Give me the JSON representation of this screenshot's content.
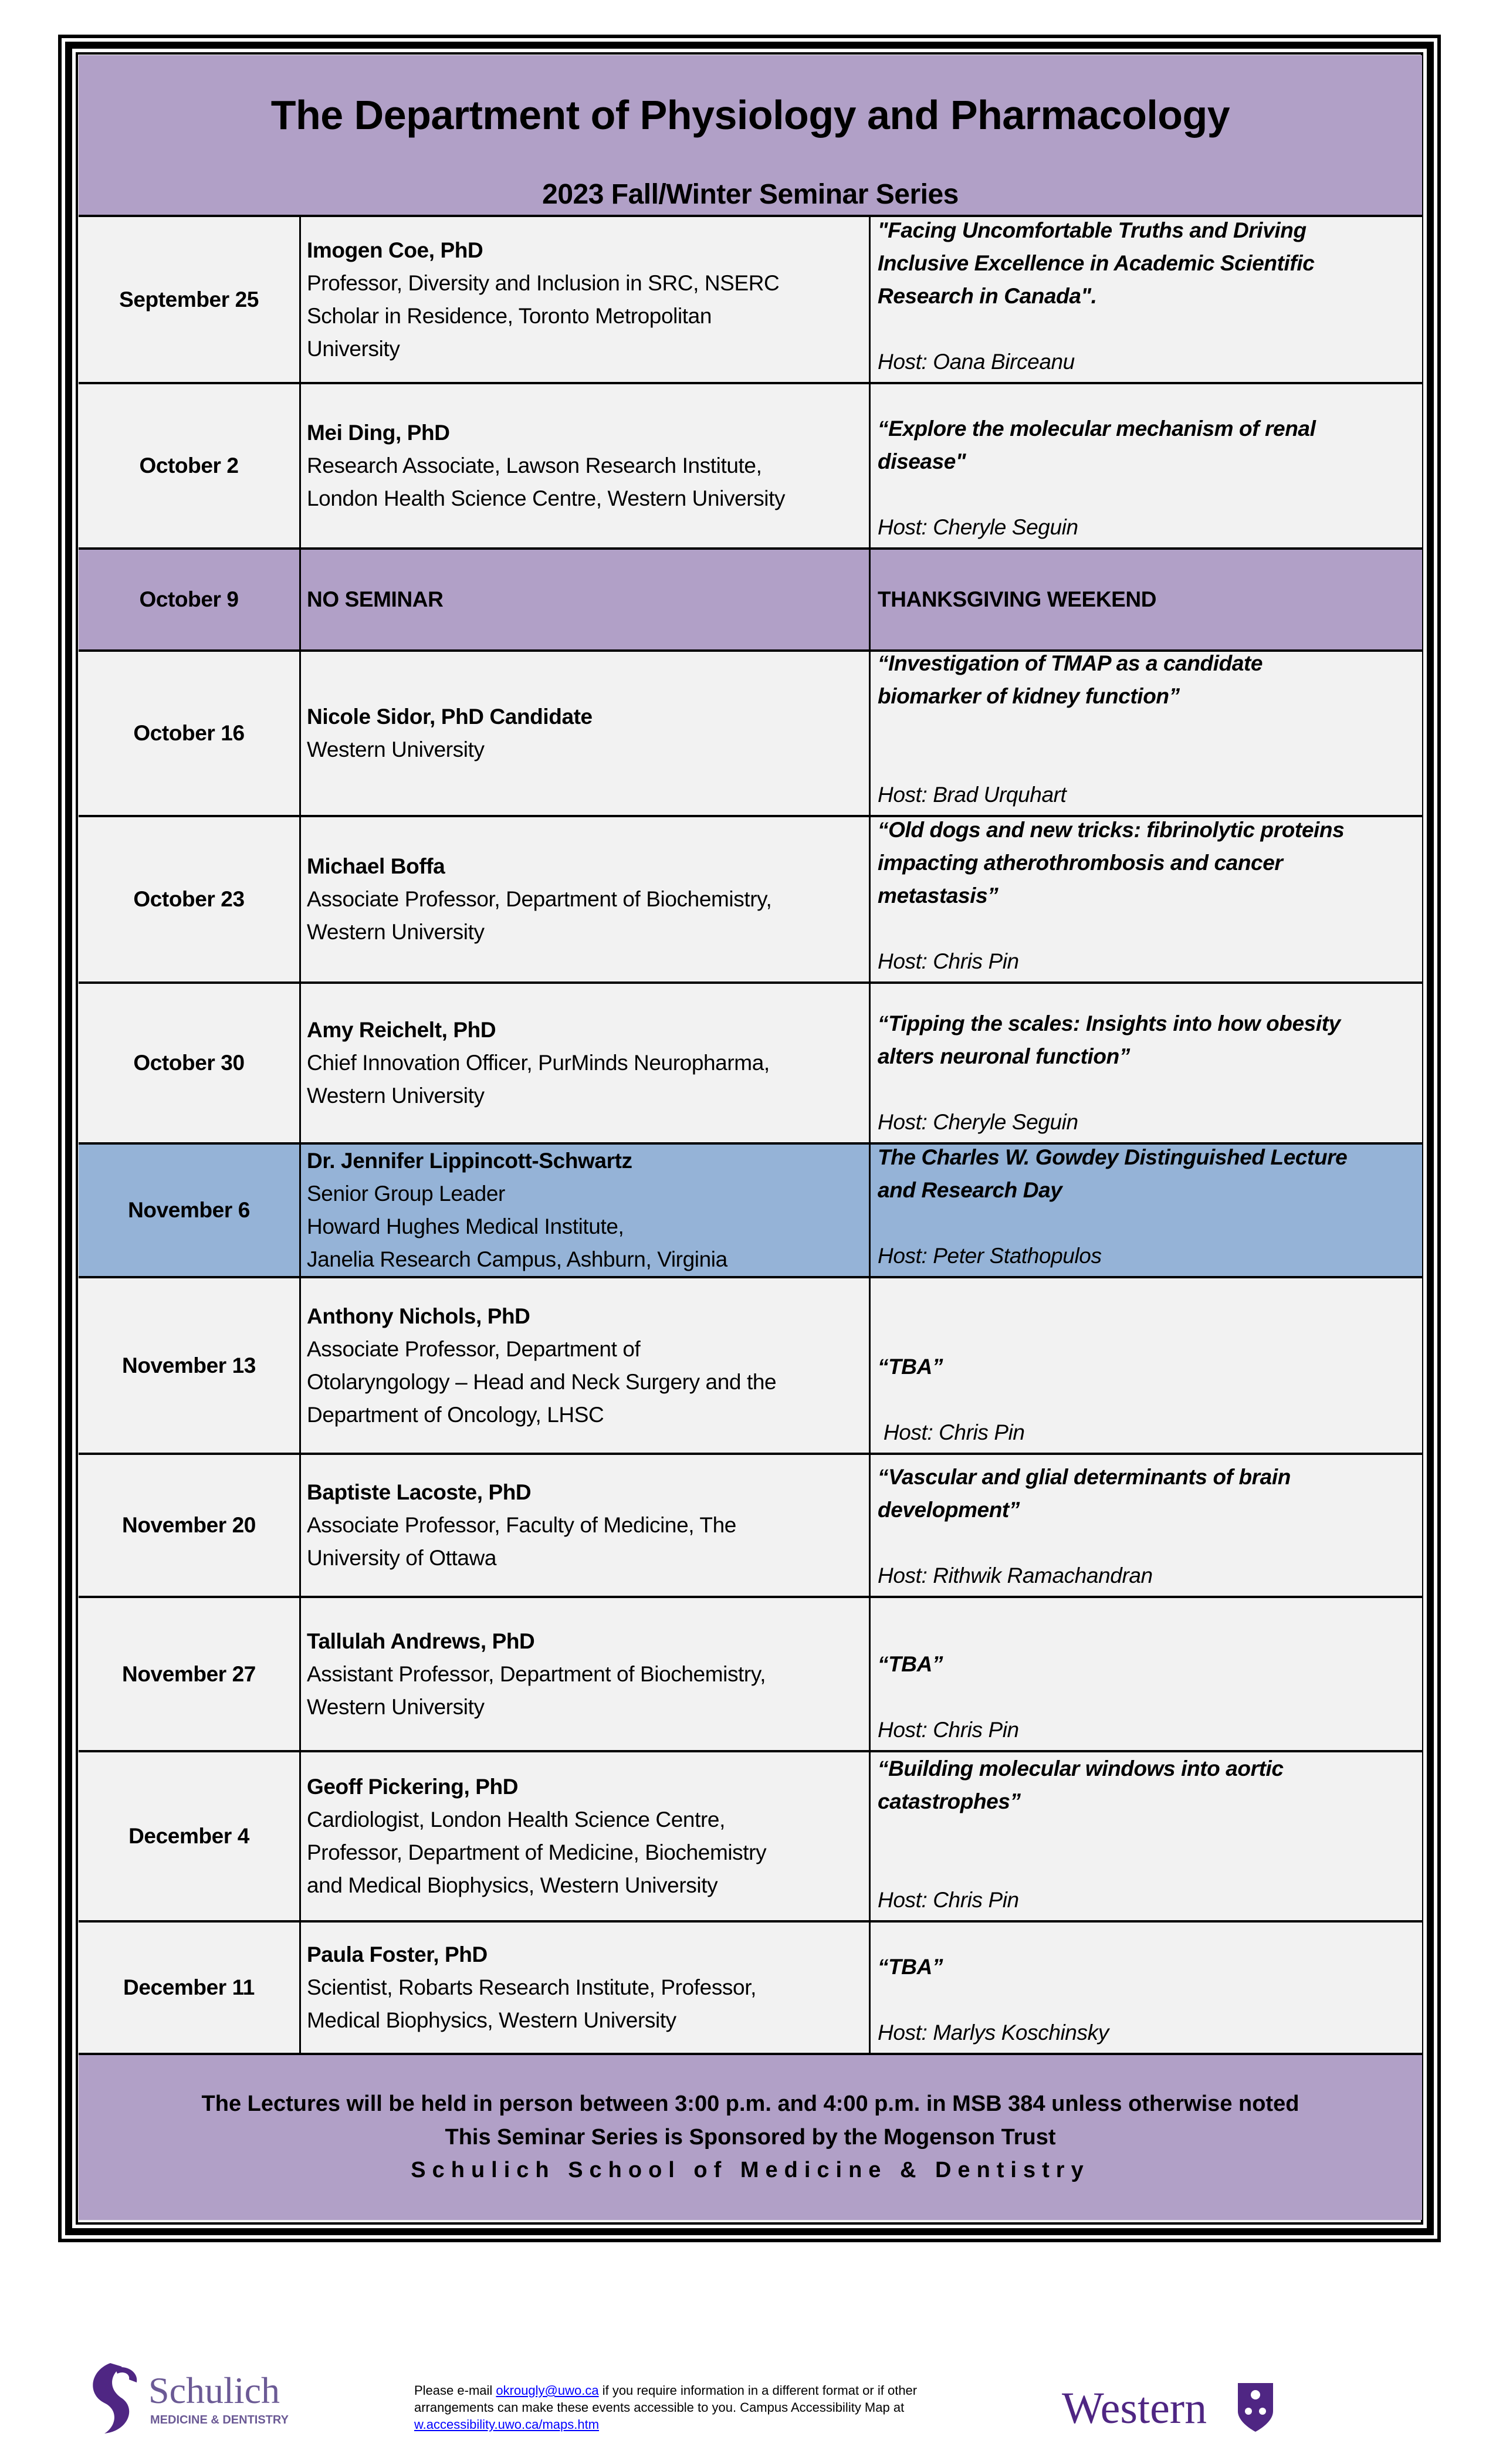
{
  "header": {
    "title": "The Department of Physiology and Pharmacology",
    "subtitle": "2023 Fall/Winter Seminar Series"
  },
  "colors": {
    "header_purple": "#b1a0c7",
    "row_gray": "#f2f2f2",
    "highlight_blue": "#95b3d7",
    "logo_purple": "#4f2683"
  },
  "rows": [
    {
      "date": "September 25",
      "style": "normal",
      "speaker": [
        "Imogen Coe, PhD",
        "Professor, Diversity and Inclusion in SRC, NSERC",
        "Scholar in Residence, Toronto Metropolitan",
        "University"
      ],
      "topic": [
        "\"Facing Uncomfortable Truths and Driving",
        "Inclusive Excellence in Academic Scientific",
        "Research in Canada\"."
      ],
      "host": "Host: Oana Birceanu",
      "gap": 1
    },
    {
      "date": "October 2",
      "style": "normal",
      "speaker": [
        "Mei Ding, PhD",
        "Research Associate, Lawson Research Institute,",
        "London Health Science Centre, Western University"
      ],
      "topic": [
        "“Explore the molecular mechanism of renal",
        "disease\""
      ],
      "host": "Host: Cheryle Seguin",
      "gap": 1
    },
    {
      "date": "October 9",
      "style": "plain",
      "speaker": [
        "NO SEMINAR"
      ],
      "topic": [
        "THANKSGIVING WEEKEND"
      ],
      "host": "",
      "gap": 0
    },
    {
      "date": "October 16",
      "style": "normal",
      "speaker": [
        "Nicole Sidor, PhD Candidate",
        "Western University"
      ],
      "topic": [
        "“Investigation of TMAP as a candidate",
        "biomarker of kidney function”"
      ],
      "host": "Host: Brad Urquhart",
      "gap": 2
    },
    {
      "date": "October 23",
      "style": "normal",
      "speaker": [
        "Michael Boffa",
        "Associate Professor, Department of Biochemistry,",
        "Western University"
      ],
      "topic": [
        "“Old dogs and new tricks: fibrinolytic proteins",
        "impacting atherothrombosis and cancer",
        "metastasis”"
      ],
      "host": "Host: Chris Pin",
      "gap": 1
    },
    {
      "date": "October 30",
      "style": "normal",
      "speaker": [
        "Amy Reichelt, PhD",
        "Chief Innovation Officer, PurMinds Neuropharma,",
        "Western University"
      ],
      "topic": [
        "“Tipping the scales: Insights into how obesity",
        "alters neuronal function”"
      ],
      "host": "Host: Cheryle Seguin",
      "gap": 1
    },
    {
      "date": "November 6",
      "style": "blue",
      "speaker": [
        "Dr. Jennifer Lippincott-Schwartz",
        "Senior Group Leader",
        "Howard Hughes Medical Institute,",
        "Janelia Research Campus, Ashburn, Virginia"
      ],
      "topic": [
        "The Charles W. Gowdey Distinguished Lecture",
        "and Research Day"
      ],
      "host": "Host: Peter Stathopulos",
      "gap": 1
    },
    {
      "date": "November 13",
      "style": "normal",
      "speaker": [
        "Anthony Nichols, PhD",
        "Associate Professor, Department of",
        "Otolaryngology – Head and Neck Surgery and the",
        "Department of Oncology, LHSC"
      ],
      "topic": [
        "“TBA”"
      ],
      "host": " Host: Chris Pin",
      "gap": 1
    },
    {
      "date": "November 20",
      "style": "normal",
      "speaker": [
        "Baptiste Lacoste, PhD",
        "Associate Professor, Faculty of Medicine, The",
        "University of Ottawa"
      ],
      "topic": [
        "“Vascular and glial determinants of brain",
        "development”"
      ],
      "host": "Host: Rithwik Ramachandran",
      "gap": 1
    },
    {
      "date": "November 27",
      "style": "normal",
      "speaker": [
        "Tallulah Andrews, PhD",
        "Assistant Professor, Department of Biochemistry,",
        "Western University"
      ],
      "topic": [
        "“TBA”"
      ],
      "host": "Host: Chris Pin",
      "gap": 1
    },
    {
      "date": "December 4",
      "style": "normal",
      "speaker": [
        "Geoff Pickering, PhD",
        "Cardiologist, London Health Science Centre,",
        "Professor, Department of Medicine, Biochemistry",
        "and Medical Biophysics, Western University"
      ],
      "topic": [
        "“Building molecular windows into aortic",
        "catastrophes”"
      ],
      "host": "Host: Chris Pin",
      "gap": 2
    },
    {
      "date": "December 11",
      "style": "normal",
      "speaker": [
        "Paula Foster, PhD",
        "Scientist, Robarts Research Institute, Professor,",
        "Medical Biophysics, Western University"
      ],
      "topic": [
        "“TBA”"
      ],
      "host": "Host: Marlys Koschinsky",
      "gap": 1
    }
  ],
  "footer": {
    "line1": "The Lectures will be held in person between 3:00 p.m. and 4:00 p.m. in MSB 384 unless otherwise noted",
    "line2": "This Seminar Series is Sponsored by the Mogenson Trust",
    "line3": "Schulich School of Medicine & Dentistry"
  },
  "bottom": {
    "schulich_logo": {
      "name": "Schulich",
      "tagline": "MEDICINE & DENTISTRY"
    },
    "notice_pre": "Please e-mail ",
    "email": "okrougly@uwo.ca",
    "notice_mid": " if you require information in a different format or if other arrangements can make these events accessible to you. Campus Accessibility Map at ",
    "map_link": "w.accessibility.uwo.ca/maps.htm",
    "western_logo": {
      "name": "Western"
    }
  }
}
